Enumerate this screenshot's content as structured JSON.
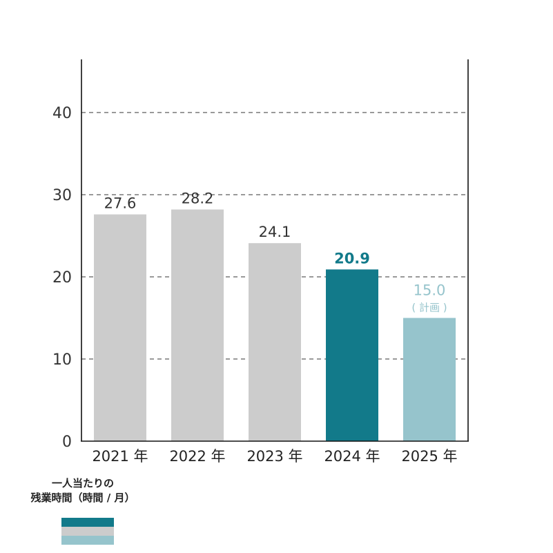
{
  "chart_data": {
    "type": "bar",
    "categories": [
      "2021 年",
      "2022 年",
      "2023 年",
      "2024 年",
      "2025 年"
    ],
    "values": [
      27.6,
      28.2,
      24.1,
      20.9,
      15.0
    ],
    "value_labels": [
      "27.6",
      "28.2",
      "24.1",
      "20.9",
      "15.0"
    ],
    "notes": [
      "",
      "",
      "",
      "",
      "( 計画 )"
    ],
    "y_ticks": [
      "0",
      "10",
      "20",
      "30",
      "40"
    ],
    "ylim": [
      0,
      46
    ],
    "grid": "dashed horizontal",
    "title": "",
    "xlabel": "",
    "ylabel": ""
  },
  "legend": {
    "line1": "一人当たりの",
    "line2": "残業時間（時間 / 月）"
  },
  "colors": {
    "past": "#cccccc",
    "current": "#127a8a",
    "plan": "#96c4cc",
    "axis": "#111111",
    "grid": "#333333",
    "tick_text": "#333333"
  }
}
